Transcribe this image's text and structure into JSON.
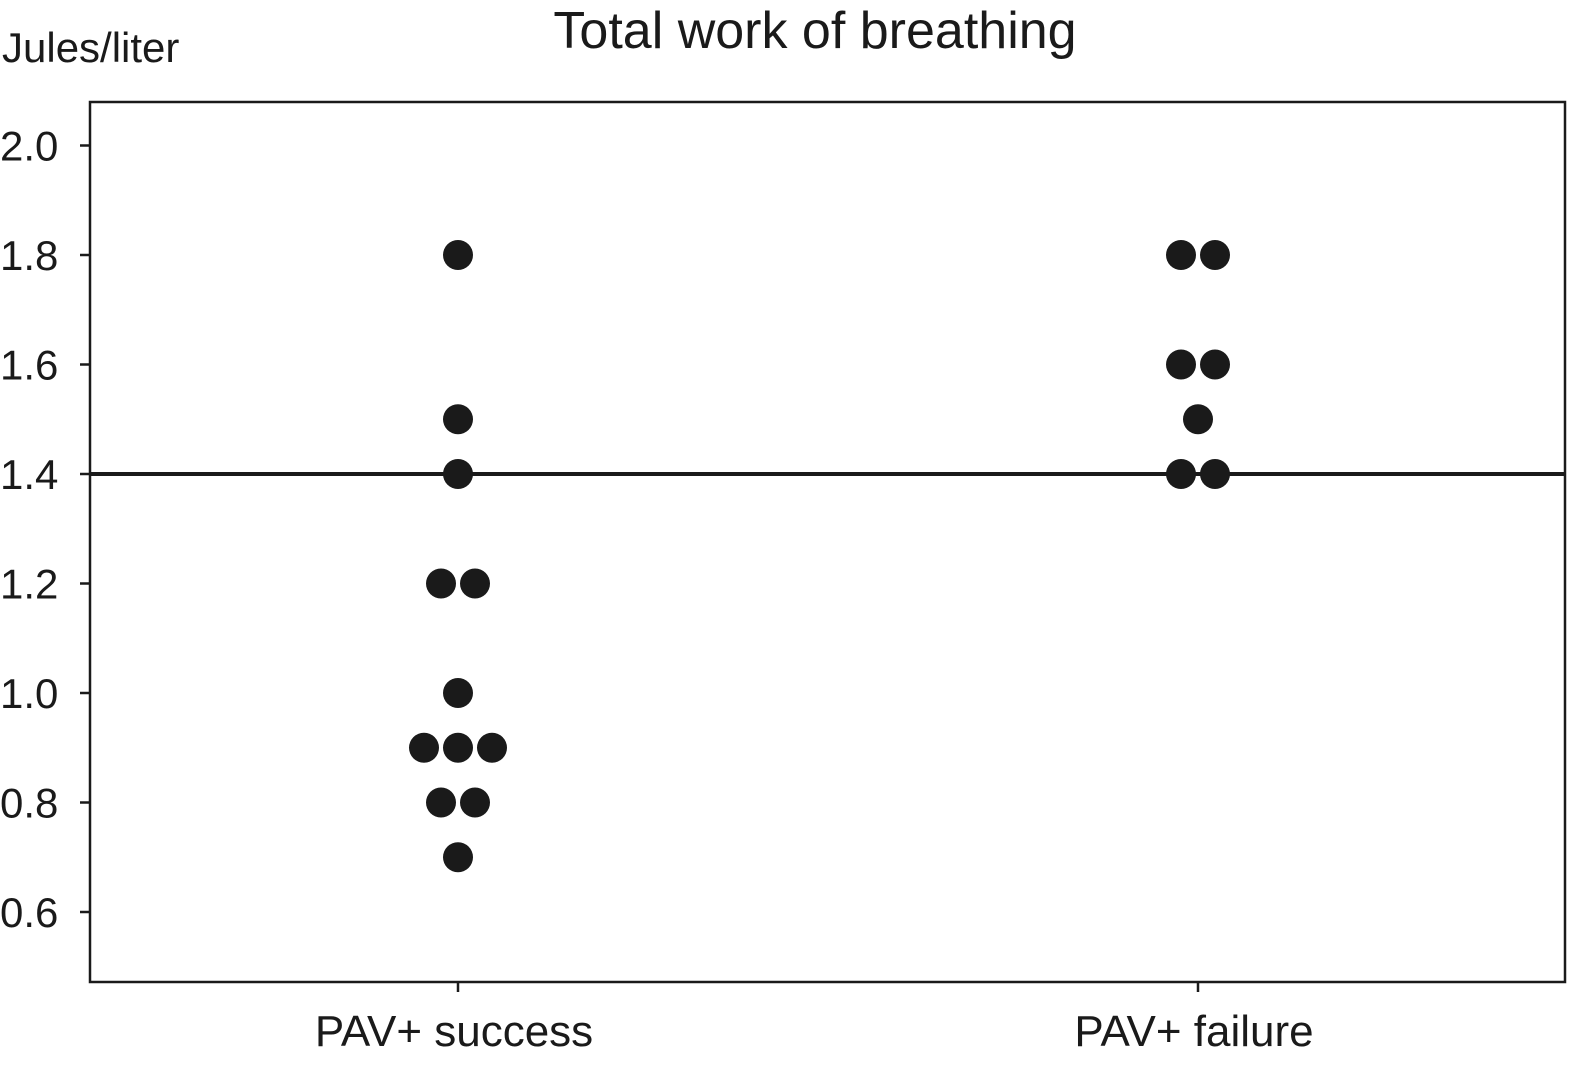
{
  "chart_data": {
    "type": "scatter",
    "title": "Total work of breathing",
    "ylabel": "Jules/liter",
    "xlabel": "",
    "categories": [
      "PAV+ success",
      "PAV+ failure"
    ],
    "ylim": [
      0.52,
      2.08
    ],
    "yticks": [
      "0.6",
      "0.8",
      "1.0",
      "1.2",
      "1.4",
      "1.6",
      "1.8",
      "2.0"
    ],
    "reference_line": {
      "y": 1.4
    },
    "grid": false,
    "legend": "none",
    "marker_color": "#1a1a1a",
    "points": [
      {
        "category": "PAV+ success",
        "offset": 0,
        "y": 1.8
      },
      {
        "category": "PAV+ success",
        "offset": 0,
        "y": 1.5
      },
      {
        "category": "PAV+ success",
        "offset": 0,
        "y": 1.4
      },
      {
        "category": "PAV+ success",
        "offset": -0.5,
        "y": 1.2
      },
      {
        "category": "PAV+ success",
        "offset": 0.5,
        "y": 1.2
      },
      {
        "category": "PAV+ success",
        "offset": 0,
        "y": 1.0
      },
      {
        "category": "PAV+ success",
        "offset": -1,
        "y": 0.9
      },
      {
        "category": "PAV+ success",
        "offset": 0,
        "y": 0.9
      },
      {
        "category": "PAV+ success",
        "offset": 1,
        "y": 0.9
      },
      {
        "category": "PAV+ success",
        "offset": -0.5,
        "y": 0.8
      },
      {
        "category": "PAV+ success",
        "offset": 0.5,
        "y": 0.8
      },
      {
        "category": "PAV+ success",
        "offset": 0,
        "y": 0.7
      },
      {
        "category": "PAV+ failure",
        "offset": -0.5,
        "y": 1.8
      },
      {
        "category": "PAV+ failure",
        "offset": 0.5,
        "y": 1.8
      },
      {
        "category": "PAV+ failure",
        "offset": -0.5,
        "y": 1.6
      },
      {
        "category": "PAV+ failure",
        "offset": 0.5,
        "y": 1.6
      },
      {
        "category": "PAV+ failure",
        "offset": 0,
        "y": 1.5
      },
      {
        "category": "PAV+ failure",
        "offset": -0.5,
        "y": 1.4
      },
      {
        "category": "PAV+ failure",
        "offset": 0.5,
        "y": 1.4
      }
    ]
  }
}
